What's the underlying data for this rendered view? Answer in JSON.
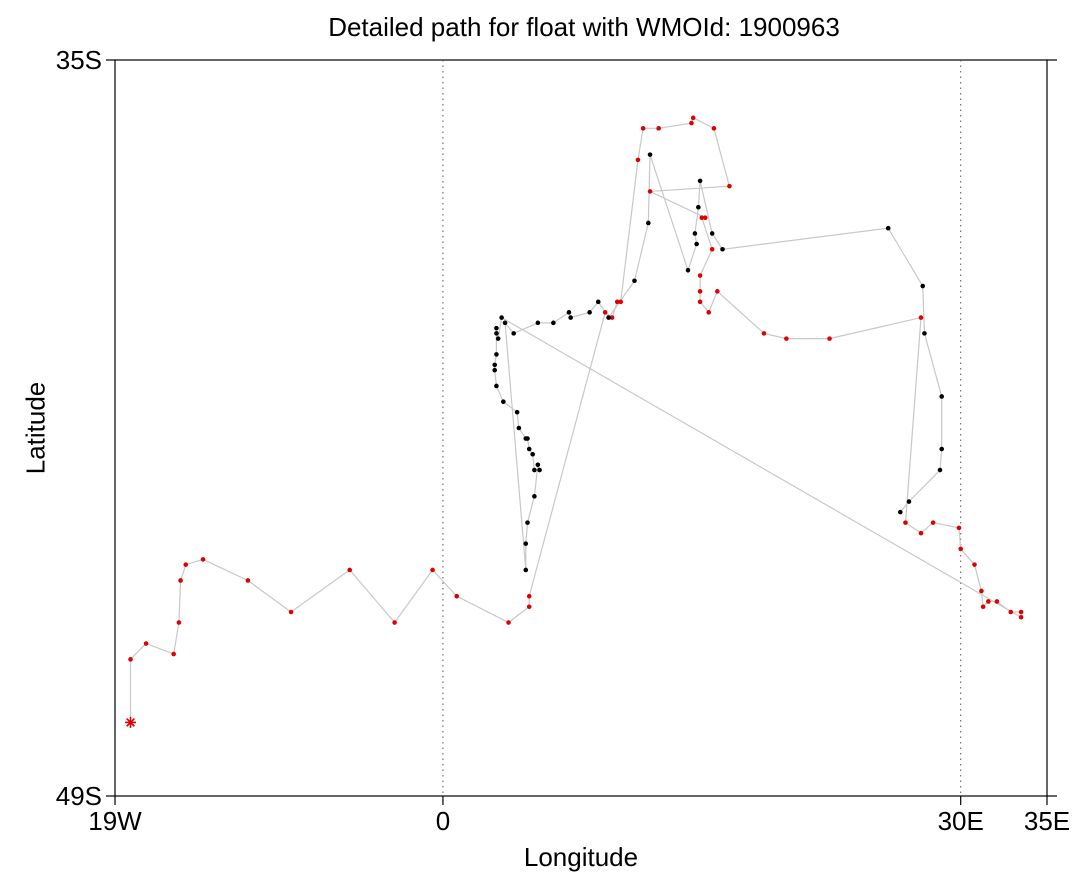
{
  "chart_data": {
    "type": "scatter",
    "title": "Detailed path for float with WMOId: 1900963",
    "xlabel": "Longitude",
    "ylabel": "Latitude",
    "xlim": [
      -19,
      35
    ],
    "ylim": [
      -49,
      -35
    ],
    "x_ticks": [
      {
        "value": -19,
        "label": "19W"
      },
      {
        "value": 0,
        "label": "0"
      },
      {
        "value": 30,
        "label": "30E"
      },
      {
        "value": 35,
        "label": "35E"
      }
    ],
    "y_ticks": [
      {
        "value": -35,
        "label": "35S"
      },
      {
        "value": -49,
        "label": "49S"
      }
    ],
    "reference_lines": [
      {
        "axis": "x",
        "value": 0,
        "style": "dotted"
      },
      {
        "axis": "x",
        "value": 30,
        "style": "dotted"
      }
    ],
    "colors": {
      "path": "#c8c8c8",
      "early_points": "#e00000",
      "later_points": "#000000",
      "deployment_marker": "#e00000"
    },
    "deployment": {
      "lon": -18.1,
      "lat": -47.6,
      "marker": "asterisk"
    },
    "series": [
      {
        "color": "red",
        "points": [
          [
            -18.1,
            -46.4
          ],
          [
            -17.2,
            -46.1
          ],
          [
            -15.6,
            -46.3
          ],
          [
            -15.3,
            -45.7
          ],
          [
            -15.2,
            -44.9
          ],
          [
            -14.9,
            -44.6
          ],
          [
            -13.9,
            -44.5
          ],
          [
            -11.3,
            -44.9
          ],
          [
            -8.8,
            -45.5
          ],
          [
            -5.4,
            -44.7
          ],
          [
            -2.8,
            -45.7
          ],
          [
            -0.6,
            -44.7
          ],
          [
            0.8,
            -45.2
          ],
          [
            3.8,
            -45.7
          ],
          [
            5.0,
            -45.4
          ],
          [
            5.0,
            -45.2
          ],
          [
            9.4,
            -39.8
          ],
          [
            9.8,
            -39.9
          ],
          [
            10.1,
            -39.6
          ],
          [
            10.3,
            -39.6
          ],
          [
            11.3,
            -36.9
          ],
          [
            11.6,
            -36.3
          ],
          [
            12.5,
            -36.3
          ],
          [
            14.4,
            -36.2
          ],
          [
            14.5,
            -36.1
          ],
          [
            15.7,
            -36.3
          ],
          [
            16.6,
            -37.4
          ],
          [
            12.0,
            -37.5
          ],
          [
            15.2,
            -38.0
          ],
          [
            15.0,
            -38.0
          ],
          [
            15.6,
            -38.6
          ],
          [
            14.9,
            -39.1
          ],
          [
            14.9,
            -39.4
          ],
          [
            14.9,
            -39.6
          ],
          [
            15.4,
            -39.8
          ],
          [
            15.9,
            -39.4
          ],
          [
            18.6,
            -40.2
          ],
          [
            19.9,
            -40.3
          ],
          [
            22.4,
            -40.3
          ],
          [
            27.7,
            -39.9
          ],
          [
            26.8,
            -43.8
          ],
          [
            27.7,
            -44.0
          ],
          [
            28.4,
            -43.8
          ],
          [
            29.9,
            -43.9
          ],
          [
            30.0,
            -44.3
          ],
          [
            30.8,
            -44.6
          ],
          [
            31.2,
            -45.1
          ],
          [
            31.3,
            -45.4
          ],
          [
            31.6,
            -45.3
          ],
          [
            32.1,
            -45.3
          ],
          [
            32.9,
            -45.5
          ],
          [
            33.5,
            -45.5
          ],
          [
            33.5,
            -45.6
          ]
        ]
      },
      {
        "color": "black",
        "points": [
          [
            3.4,
            -39.9
          ],
          [
            3.2,
            -40.3
          ],
          [
            3.1,
            -40.1
          ],
          [
            3.1,
            -40.2
          ],
          [
            3.1,
            -40.6
          ],
          [
            3.0,
            -40.8
          ],
          [
            3.0,
            -40.9
          ],
          [
            3.1,
            -41.2
          ],
          [
            3.5,
            -41.5
          ],
          [
            4.3,
            -41.7
          ],
          [
            4.4,
            -42.0
          ],
          [
            4.8,
            -42.2
          ],
          [
            4.9,
            -42.2
          ],
          [
            5.0,
            -42.4
          ],
          [
            5.2,
            -42.5
          ],
          [
            5.3,
            -42.8
          ],
          [
            5.6,
            -42.8
          ],
          [
            5.5,
            -42.7
          ],
          [
            5.3,
            -43.3
          ],
          [
            4.9,
            -43.8
          ],
          [
            4.8,
            -44.2
          ],
          [
            4.8,
            -44.7
          ],
          [
            3.6,
            -40.0
          ],
          [
            4.1,
            -40.2
          ],
          [
            5.5,
            -40.0
          ],
          [
            6.4,
            -40.0
          ],
          [
            7.3,
            -39.8
          ],
          [
            7.4,
            -39.9
          ],
          [
            8.5,
            -39.8
          ],
          [
            9.0,
            -39.6
          ],
          [
            9.6,
            -39.9
          ],
          [
            11.1,
            -39.2
          ],
          [
            11.9,
            -38.1
          ],
          [
            12.0,
            -36.8
          ],
          [
            14.2,
            -39.0
          ],
          [
            14.7,
            -38.5
          ],
          [
            14.6,
            -38.3
          ],
          [
            14.8,
            -37.8
          ],
          [
            14.9,
            -37.3
          ],
          [
            15.6,
            -38.3
          ],
          [
            16.2,
            -38.6
          ],
          [
            25.8,
            -38.2
          ],
          [
            27.8,
            -39.3
          ],
          [
            27.9,
            -40.2
          ],
          [
            28.9,
            -41.4
          ],
          [
            28.9,
            -42.4
          ],
          [
            28.8,
            -42.8
          ],
          [
            27.0,
            -43.4
          ],
          [
            26.5,
            -43.6
          ]
        ]
      }
    ]
  }
}
